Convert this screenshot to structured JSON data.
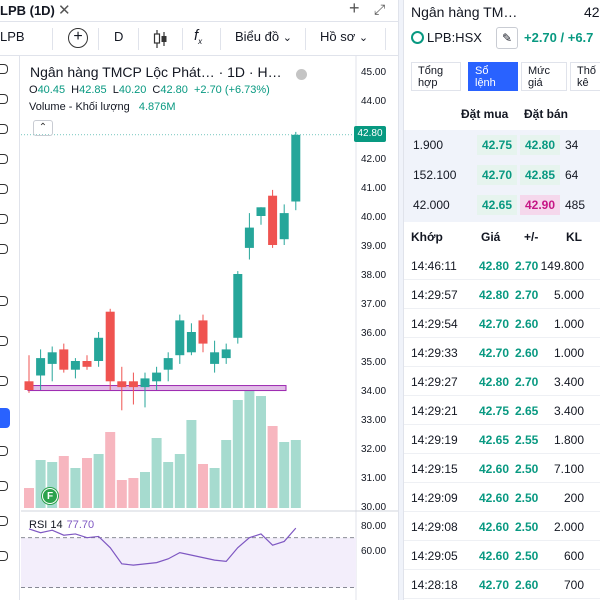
{
  "tab": {
    "title": "LPB (1D)",
    "close": "✕",
    "plus": "+",
    "expand": "⤢"
  },
  "toolbar": {
    "interval": "D",
    "fx": "f",
    "chart_type": "Biểu đồ",
    "profile": "Hồ sơ",
    "symbol_short": "LPB",
    "chevron": "⌄"
  },
  "legend": {
    "title": "Ngân hàng TMCP Lộc Phát… · 1D · H…",
    "o_label": "O",
    "o": "40.45",
    "h_label": "H",
    "h": "42.85",
    "l_label": "L",
    "l": "40.20",
    "c_label": "C",
    "c": "42.80",
    "change": "+2.70 (+6.73%)",
    "volume_label": "Volume - Khối lượng",
    "volume_value": "4.876M",
    "collapse": "⌃"
  },
  "rsi": {
    "label": "RSI 14",
    "value": "77.70"
  },
  "f_badge": "F",
  "last_price_tag": "42.80",
  "chart_data": {
    "type": "candlestick",
    "price_axis": [
      "45.00",
      "44.00",
      "43.00",
      "42.00",
      "41.00",
      "40.00",
      "39.00",
      "38.00",
      "37.00",
      "36.00",
      "35.00",
      "34.00",
      "33.00",
      "32.00",
      "31.00",
      "30.00"
    ],
    "rsi_axis": [
      "80.00",
      "60.00"
    ],
    "ylim": [
      30,
      45
    ],
    "support_level": 34.05,
    "candles": [
      {
        "o": 34.3,
        "h": 35.2,
        "l": 33.9,
        "c": 34.0
      },
      {
        "o": 34.5,
        "h": 35.4,
        "l": 34.0,
        "c": 35.1
      },
      {
        "o": 34.9,
        "h": 35.5,
        "l": 34.3,
        "c": 35.3
      },
      {
        "o": 35.4,
        "h": 35.6,
        "l": 34.6,
        "c": 34.7
      },
      {
        "o": 34.7,
        "h": 35.1,
        "l": 34.4,
        "c": 35.0
      },
      {
        "o": 35.0,
        "h": 35.2,
        "l": 34.7,
        "c": 34.8
      },
      {
        "o": 35.0,
        "h": 36.0,
        "l": 34.8,
        "c": 35.8
      },
      {
        "o": 36.7,
        "h": 36.8,
        "l": 34.0,
        "c": 34.3
      },
      {
        "o": 34.3,
        "h": 34.8,
        "l": 33.3,
        "c": 34.1
      },
      {
        "o": 34.3,
        "h": 34.6,
        "l": 33.5,
        "c": 34.1
      },
      {
        "o": 34.1,
        "h": 34.6,
        "l": 33.4,
        "c": 34.4
      },
      {
        "o": 34.3,
        "h": 34.8,
        "l": 34.0,
        "c": 34.6
      },
      {
        "o": 34.7,
        "h": 35.3,
        "l": 34.3,
        "c": 35.1
      },
      {
        "o": 35.2,
        "h": 36.6,
        "l": 34.9,
        "c": 36.4
      },
      {
        "o": 35.3,
        "h": 36.3,
        "l": 35.2,
        "c": 36.0
      },
      {
        "o": 36.4,
        "h": 36.6,
        "l": 35.3,
        "c": 35.6
      },
      {
        "o": 34.9,
        "h": 35.7,
        "l": 34.6,
        "c": 35.3
      },
      {
        "o": 35.1,
        "h": 35.6,
        "l": 34.9,
        "c": 35.4
      },
      {
        "o": 35.8,
        "h": 38.1,
        "l": 35.6,
        "c": 38.0
      },
      {
        "o": 38.9,
        "h": 40.1,
        "l": 38.5,
        "c": 39.6
      },
      {
        "o": 40.0,
        "h": 40.3,
        "l": 39.7,
        "c": 40.3
      },
      {
        "o": 40.7,
        "h": 40.9,
        "l": 38.9,
        "c": 39.0
      },
      {
        "o": 39.2,
        "h": 40.4,
        "l": 39.0,
        "c": 40.1
      },
      {
        "o": 40.5,
        "h": 42.9,
        "l": 40.2,
        "c": 42.8
      }
    ],
    "rsi": [
      77,
      74,
      76,
      72,
      73,
      70,
      71,
      62,
      49,
      48,
      49,
      50,
      53,
      58,
      56,
      54,
      52,
      51,
      62,
      70,
      73,
      64,
      67,
      77.7
    ]
  },
  "panel": {
    "name": "Ngân hàng TM…",
    "price": "42",
    "symbol": "LPB:HSX",
    "edit": "✎",
    "change": "+2.70 / +6.7",
    "tabs": [
      {
        "line1": "Tổng",
        "line2": "hợp"
      },
      {
        "line1": "Sổ",
        "line2": "lệnh"
      },
      {
        "line1": "Mức",
        "line2": "giá"
      },
      {
        "line1": "Thố",
        "line2": "kê"
      }
    ],
    "orderbook": {
      "bid_header": "Đặt mua",
      "ask_header": "Đặt bán",
      "rows": [
        {
          "bid_vol": "1.900",
          "bid": "42.75",
          "ask": "42.80",
          "ask_vol": "34",
          "ask_highlight": false
        },
        {
          "bid_vol": "152.100",
          "bid": "42.70",
          "ask": "42.85",
          "ask_vol": "64",
          "ask_highlight": false
        },
        {
          "bid_vol": "42.000",
          "bid": "42.65",
          "ask": "42.90",
          "ask_vol": "485",
          "ask_highlight": true
        }
      ]
    },
    "trades": {
      "headers": {
        "time": "Khớp",
        "price": "Giá",
        "chg": "+/-",
        "vol": "KL"
      },
      "rows": [
        {
          "time": "14:46:11",
          "price": "42.80",
          "chg": "2.70",
          "vol": "149.800"
        },
        {
          "time": "14:29:57",
          "price": "42.80",
          "chg": "2.70",
          "vol": "5.000"
        },
        {
          "time": "14:29:54",
          "price": "42.70",
          "chg": "2.60",
          "vol": "1.000"
        },
        {
          "time": "14:29:33",
          "price": "42.70",
          "chg": "2.60",
          "vol": "1.000"
        },
        {
          "time": "14:29:27",
          "price": "42.80",
          "chg": "2.70",
          "vol": "3.400"
        },
        {
          "time": "14:29:21",
          "price": "42.75",
          "chg": "2.65",
          "vol": "3.400"
        },
        {
          "time": "14:29:19",
          "price": "42.65",
          "chg": "2.55",
          "vol": "1.800"
        },
        {
          "time": "14:29:15",
          "price": "42.60",
          "chg": "2.50",
          "vol": "7.100"
        },
        {
          "time": "14:29:09",
          "price": "42.60",
          "chg": "2.50",
          "vol": "200"
        },
        {
          "time": "14:29:08",
          "price": "42.60",
          "chg": "2.50",
          "vol": "2.000"
        },
        {
          "time": "14:29:05",
          "price": "42.60",
          "chg": "2.50",
          "vol": "600"
        },
        {
          "time": "14:28:18",
          "price": "42.70",
          "chg": "2.60",
          "vol": "700"
        }
      ]
    }
  }
}
